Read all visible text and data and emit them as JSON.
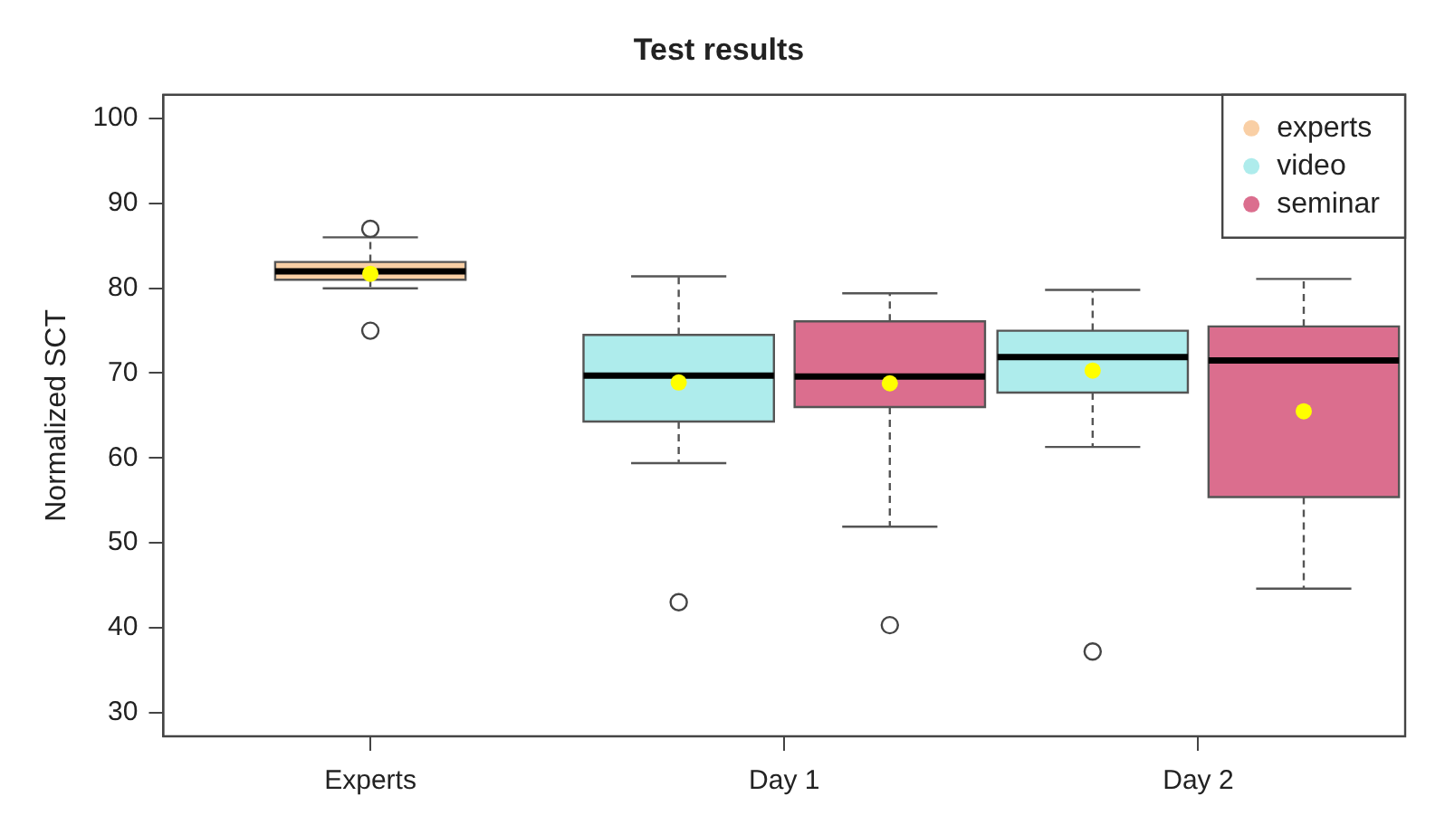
{
  "chart_data": {
    "type": "box",
    "title": "Test results",
    "ylabel": "Normalized SCT",
    "categories": [
      "Experts",
      "Day 1",
      "Day 2"
    ],
    "series": [
      {
        "name": "experts",
        "color": "#f9cfa5",
        "boxes": [
          {
            "low": 80.0,
            "q1": 81.0,
            "median": 82.0,
            "q3": 83.1,
            "high": 86.0,
            "mean": 81.7,
            "outliers": [
              87.0,
              75.0
            ]
          },
          null,
          null
        ]
      },
      {
        "name": "video",
        "color": "#aeecec",
        "boxes": [
          null,
          {
            "low": 59.4,
            "q1": 64.3,
            "median": 69.7,
            "q3": 74.5,
            "high": 81.4,
            "mean": 68.9,
            "outliers": [
              43.0
            ]
          },
          {
            "low": 61.3,
            "q1": 67.7,
            "median": 71.9,
            "q3": 75.0,
            "high": 79.8,
            "mean": 70.3,
            "outliers": [
              37.2
            ]
          }
        ]
      },
      {
        "name": "seminar",
        "color": "#db6e8e",
        "boxes": [
          null,
          {
            "low": 51.9,
            "q1": 66.0,
            "median": 69.6,
            "q3": 76.1,
            "high": 79.4,
            "mean": 68.8,
            "outliers": [
              40.3
            ]
          },
          {
            "low": 44.6,
            "q1": 55.4,
            "median": 71.5,
            "q3": 75.5,
            "high": 81.1,
            "mean": 65.5
          }
        ]
      }
    ],
    "ylim": [
      27.2,
      102.8
    ],
    "yticks": [
      30,
      40,
      50,
      60,
      70,
      80,
      90,
      100
    ],
    "grid": false,
    "legend": "top right"
  }
}
